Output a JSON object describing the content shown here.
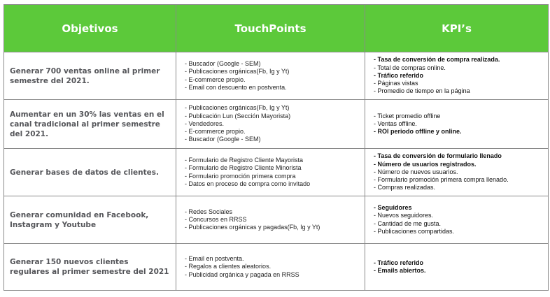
{
  "header": {
    "col_objetivos": "Objetivos",
    "col_touchpoints": "TouchPoints",
    "col_kpis": "KPI’s"
  },
  "rows": [
    {
      "objetivo": "Generar 700 ventas online al primer semestre del 2021.",
      "touchpoints": [
        {
          "text": "- Buscador (Google - SEM)",
          "bold": false
        },
        {
          "text": "- Publicaciones orgánicas(Fb, Ig y Yt)",
          "bold": false
        },
        {
          "text": "- E-commerce propio.",
          "bold": false
        },
        {
          "text": "- Email con descuento en postventa.",
          "bold": false
        }
      ],
      "kpis": [
        {
          "text": "- Tasa de conversión de compra realizada.",
          "bold": true
        },
        {
          "text": "- Total de compras online.",
          "bold": false
        },
        {
          "text": "- Tráfico referido",
          "bold": true
        },
        {
          "text": "- Páginas vistas",
          "bold": false
        },
        {
          "text": "- Promedio de tiempo en la página",
          "bold": false
        }
      ]
    },
    {
      "objetivo": "Aumentar en un 30% las ventas en el canal tradicional al primer semestre del 2021.",
      "touchpoints": [
        {
          "text": "- Publicaciones orgánicas(Fb, Ig y Yt)",
          "bold": false
        },
        {
          "text": "- Publicación Lun (Sección Mayorista)",
          "bold": false
        },
        {
          "text": "- Vendedores.",
          "bold": false
        },
        {
          "text": "- E-commerce propio.",
          "bold": false
        },
        {
          "text": "- Buscador (Google - SEM)",
          "bold": false
        }
      ],
      "kpis": [
        {
          "text": "- Ticket promedio offline",
          "bold": false
        },
        {
          "text": "- Ventas offline.",
          "bold": false
        },
        {
          "text": "- ROI periodo offline y online.",
          "bold": true
        }
      ]
    },
    {
      "objetivo": "Generar bases de datos de clientes.",
      "touchpoints": [
        {
          "text": "- Formulario de Registro Cliente Mayorista",
          "bold": false
        },
        {
          "text": "- Formulario de Registro Cliente Minorista",
          "bold": false
        },
        {
          "text": "- Formulario promoción primera compra",
          "bold": false
        },
        {
          "text": "- Datos en proceso de compra como invitado",
          "bold": false
        }
      ],
      "kpis": [
        {
          "text": "- Tasa de conversión de formulario llenado",
          "bold": true
        },
        {
          "text": "- Número de usuarios registrados.",
          "bold": true
        },
        {
          "text": "- Número de nuevos usuarios.",
          "bold": false
        },
        {
          "text": "- Formulario promoción primera compra llenado.",
          "bold": false
        },
        {
          "text": "- Compras realizadas.",
          "bold": false
        }
      ]
    },
    {
      "objetivo": "Generar comunidad en Facebook, Instagram y Youtube",
      "touchpoints": [
        {
          "text": "- Redes Sociales",
          "bold": false
        },
        {
          "text": "- Concursos en RRSS",
          "bold": false
        },
        {
          "text": "- Publicaciones orgánicas y pagadas(Fb, Ig y Yt)",
          "bold": false
        }
      ],
      "kpis": [
        {
          "text": "- Seguidores",
          "bold": true
        },
        {
          "text": "- Nuevos seguidores.",
          "bold": false
        },
        {
          "text": "- Cantidad de me gusta.",
          "bold": false
        },
        {
          "text": "- Publicaciones compartidas.",
          "bold": false
        }
      ]
    },
    {
      "objetivo": "Generar 150 nuevos clientes regulares al primer semestre del 2021",
      "touchpoints": [
        {
          "text": "- Email en postventa.",
          "bold": false
        },
        {
          "text": "- Regalos a clientes aleatorios.",
          "bold": false
        },
        {
          "text": "- Publicidad orgánica y pagada en RRSS",
          "bold": false
        }
      ],
      "kpis": [
        {
          "text": "- Tráfico referido",
          "bold": true
        },
        {
          "text": "- Emails abiertos.",
          "bold": true
        }
      ]
    }
  ]
}
